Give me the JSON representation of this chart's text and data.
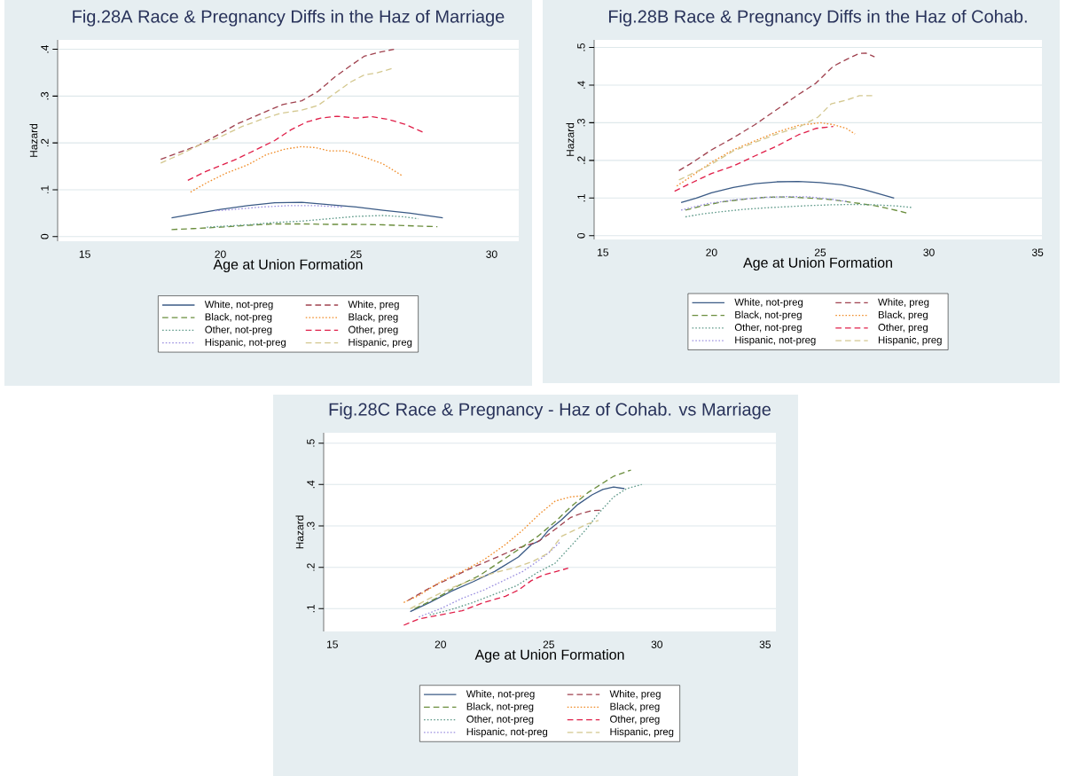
{
  "chart_data": [
    {
      "type": "line",
      "title": "Fig.28A Race & Pregnancy Diffs in the Haz of Marriage",
      "xlabel": "Age at Union Formation",
      "ylabel": "Hazard",
      "xlim": [
        14,
        31
      ],
      "ylim": [
        -0.01,
        0.42
      ],
      "xticks": [
        15,
        20,
        25,
        30
      ],
      "yticks": [
        {
          "value": 0,
          "label": "0"
        },
        {
          "value": 0.1,
          "label": ".1"
        },
        {
          "value": 0.2,
          "label": ".2"
        },
        {
          "value": 0.3,
          "label": ".3"
        },
        {
          "value": 0.4,
          "label": ".4"
        }
      ],
      "grid": "y",
      "legend": "bottom",
      "series": [
        {
          "name": "White, not-preg",
          "color": "#3a5a85",
          "line_style": "solid",
          "x": [
            18.2,
            19,
            20,
            21,
            22,
            23,
            24,
            25,
            26,
            27,
            28.2
          ],
          "values": [
            0.04,
            0.048,
            0.058,
            0.066,
            0.072,
            0.073,
            0.068,
            0.063,
            0.056,
            0.05,
            0.04
          ]
        },
        {
          "name": "White, preg",
          "color": "#a0424f",
          "line_style": "dashed",
          "x": [
            17.8,
            18.5,
            19.2,
            20,
            20.6,
            21.2,
            21.8,
            22.3,
            23,
            23.6,
            24.2,
            24.8,
            25.3,
            25.8,
            26.4
          ],
          "values": [
            0.165,
            0.18,
            0.195,
            0.22,
            0.24,
            0.255,
            0.27,
            0.282,
            0.29,
            0.31,
            0.34,
            0.365,
            0.385,
            0.393,
            0.4
          ]
        },
        {
          "name": "Black, not-preg",
          "color": "#6b8e3e",
          "line_style": "dashed",
          "x": [
            18.2,
            19,
            20,
            21,
            22,
            23,
            24,
            25,
            26,
            27,
            28
          ],
          "values": [
            0.015,
            0.017,
            0.02,
            0.024,
            0.027,
            0.027,
            0.026,
            0.026,
            0.025,
            0.023,
            0.021
          ]
        },
        {
          "name": "Black, preg",
          "color": "#f08c28",
          "line_style": "dotted",
          "x": [
            18.9,
            19.5,
            20.2,
            21,
            21.7,
            22.4,
            23,
            23.5,
            24,
            24.6,
            25.3,
            26,
            26.7
          ],
          "values": [
            0.095,
            0.115,
            0.135,
            0.153,
            0.175,
            0.187,
            0.192,
            0.19,
            0.183,
            0.183,
            0.17,
            0.155,
            0.13
          ]
        },
        {
          "name": "Other, not-preg",
          "color": "#5f9a8a",
          "line_style": "dotted",
          "x": [
            19.5,
            21,
            22,
            23,
            24,
            25,
            26,
            26.8,
            27.3
          ],
          "values": [
            0.02,
            0.025,
            0.03,
            0.033,
            0.038,
            0.043,
            0.045,
            0.042,
            0.038
          ]
        },
        {
          "name": "Other, preg",
          "color": "#e0204a",
          "line_style": "dashed",
          "x": [
            18.8,
            19.5,
            20.5,
            21.3,
            22,
            22.6,
            23.2,
            23.7,
            24.3,
            25,
            25.6,
            26.2,
            26.8,
            27.5
          ],
          "values": [
            0.12,
            0.14,
            0.163,
            0.185,
            0.205,
            0.228,
            0.245,
            0.253,
            0.257,
            0.253,
            0.256,
            0.25,
            0.24,
            0.222
          ]
        },
        {
          "name": "Hispanic, not-preg",
          "color": "#9b8fe0",
          "line_style": "dotted",
          "x": [
            19.8,
            20.5,
            21.5,
            22.5,
            23.5,
            24.5
          ],
          "values": [
            0.055,
            0.058,
            0.063,
            0.066,
            0.066,
            0.063
          ]
        },
        {
          "name": "Hispanic, preg",
          "color": "#d4c890",
          "line_style": "dashed",
          "x": [
            17.8,
            18.5,
            19.2,
            20,
            20.8,
            21.5,
            22.2,
            23,
            23.6,
            24.2,
            24.8,
            25.3,
            25.8,
            26.4
          ],
          "values": [
            0.157,
            0.175,
            0.195,
            0.213,
            0.235,
            0.25,
            0.263,
            0.27,
            0.28,
            0.305,
            0.33,
            0.345,
            0.35,
            0.36
          ]
        }
      ]
    },
    {
      "type": "line",
      "title": "Fig.28B Race & Pregnancy Diffs in the Haz of Cohab.",
      "xlabel": "Age at Union Formation",
      "ylabel": "Hazard",
      "xlim": [
        14.6,
        35.2
      ],
      "ylim": [
        -0.01,
        0.52
      ],
      "xticks": [
        15,
        20,
        25,
        30,
        35
      ],
      "yticks": [
        {
          "value": 0,
          "label": "0"
        },
        {
          "value": 0.1,
          "label": ".1"
        },
        {
          "value": 0.2,
          "label": ".2"
        },
        {
          "value": 0.3,
          "label": ".3"
        },
        {
          "value": 0.4,
          "label": ".4"
        },
        {
          "value": 0.5,
          "label": ".5"
        }
      ],
      "grid": "y",
      "legend": "bottom",
      "series": [
        {
          "name": "White, not-preg",
          "color": "#3a5a85",
          "line_style": "solid",
          "x": [
            18.6,
            19.3,
            20,
            21,
            22,
            23,
            24,
            25,
            26,
            27,
            28.4
          ],
          "values": [
            0.088,
            0.1,
            0.114,
            0.128,
            0.138,
            0.143,
            0.144,
            0.141,
            0.135,
            0.123,
            0.1
          ]
        },
        {
          "name": "White, preg",
          "color": "#a0424f",
          "line_style": "dashed",
          "x": [
            18.5,
            19,
            20,
            21,
            22,
            23,
            24,
            24.8,
            25.6,
            26.2,
            26.8,
            27.1,
            27.5
          ],
          "values": [
            0.173,
            0.19,
            0.228,
            0.26,
            0.295,
            0.335,
            0.375,
            0.405,
            0.45,
            0.468,
            0.484,
            0.485,
            0.475
          ]
        },
        {
          "name": "Black, not-preg",
          "color": "#6b8e3e",
          "line_style": "dashed",
          "x": [
            18.8,
            19.5,
            20.5,
            21.5,
            22.5,
            23.5,
            24.5,
            25.5,
            26.5,
            27.5,
            28.3,
            29
          ],
          "values": [
            0.068,
            0.078,
            0.09,
            0.097,
            0.102,
            0.103,
            0.1,
            0.096,
            0.088,
            0.08,
            0.07,
            0.06
          ]
        },
        {
          "name": "Black, preg",
          "color": "#f08c28",
          "line_style": "dotted",
          "x": [
            18.4,
            19,
            20,
            21,
            22,
            23,
            24,
            25,
            25.6,
            26.2,
            26.6
          ],
          "values": [
            0.132,
            0.155,
            0.195,
            0.228,
            0.252,
            0.275,
            0.293,
            0.3,
            0.295,
            0.285,
            0.27
          ]
        },
        {
          "name": "Other, not-preg",
          "color": "#5f9a8a",
          "line_style": "dotted",
          "x": [
            18.8,
            19.6,
            20.5,
            21.5,
            22.5,
            23.5,
            24.5,
            25.5,
            26.5,
            27.5,
            28.5,
            29.2
          ],
          "values": [
            0.05,
            0.058,
            0.064,
            0.07,
            0.074,
            0.077,
            0.08,
            0.082,
            0.083,
            0.082,
            0.079,
            0.075
          ]
        },
        {
          "name": "Other, preg",
          "color": "#e0204a",
          "line_style": "dashed",
          "x": [
            18.3,
            19,
            20,
            21,
            22,
            23,
            24,
            24.8,
            25.6
          ],
          "values": [
            0.118,
            0.138,
            0.165,
            0.185,
            0.212,
            0.238,
            0.268,
            0.285,
            0.29
          ]
        },
        {
          "name": "Hispanic, not-preg",
          "color": "#9b8fe0",
          "line_style": "dotted",
          "x": [
            18.6,
            19.8,
            21,
            22.5,
            23.5,
            24.5,
            25.5,
            26.3
          ],
          "values": [
            0.068,
            0.085,
            0.095,
            0.102,
            0.104,
            0.103,
            0.097,
            0.09
          ]
        },
        {
          "name": "Hispanic, preg",
          "color": "#d4c890",
          "line_style": "dashed",
          "x": [
            18.5,
            19.3,
            20,
            21,
            22,
            23,
            24,
            24.9,
            25.5,
            26.2,
            26.8,
            27.5
          ],
          "values": [
            0.148,
            0.17,
            0.19,
            0.225,
            0.248,
            0.27,
            0.288,
            0.315,
            0.35,
            0.36,
            0.372,
            0.372
          ]
        }
      ]
    },
    {
      "type": "line",
      "title": "Fig.28C Race & Pregnancy - Haz of Cohab. vs Marriage",
      "xlabel": "Age at Union Formation",
      "ylabel": "Hazard",
      "xlim": [
        14.6,
        35.5
      ],
      "ylim": [
        0.045,
        0.525
      ],
      "xticks": [
        15,
        20,
        25,
        30,
        35
      ],
      "yticks": [
        {
          "value": 0.1,
          "label": ".1"
        },
        {
          "value": 0.2,
          "label": ".2"
        },
        {
          "value": 0.3,
          "label": ".3"
        },
        {
          "value": 0.4,
          "label": ".4"
        },
        {
          "value": 0.5,
          "label": ".5"
        }
      ],
      "grid": "y",
      "legend": "bottom",
      "series": [
        {
          "name": "White, not-preg",
          "color": "#3a5a85",
          "line_style": "solid",
          "x": [
            18.6,
            19.5,
            20.5,
            21.5,
            22.5,
            23.6,
            24.2,
            24.6,
            25,
            25.6,
            26.3,
            27,
            27.5,
            28,
            28.5
          ],
          "values": [
            0.093,
            0.115,
            0.142,
            0.165,
            0.19,
            0.225,
            0.255,
            0.265,
            0.29,
            0.315,
            0.35,
            0.375,
            0.388,
            0.394,
            0.39
          ]
        },
        {
          "name": "White, preg",
          "color": "#a0424f",
          "line_style": "dashed",
          "x": [
            18.5,
            19.5,
            20.5,
            21.5,
            22.5,
            23.5,
            24.5,
            25,
            25.5,
            26,
            26.5,
            27,
            27.5
          ],
          "values": [
            0.12,
            0.15,
            0.175,
            0.2,
            0.222,
            0.245,
            0.262,
            0.28,
            0.3,
            0.32,
            0.33,
            0.337,
            0.338
          ]
        },
        {
          "name": "Black, not-preg",
          "color": "#6b8e3e",
          "line_style": "dashed",
          "x": [
            18.8,
            19.8,
            20.8,
            21.8,
            22.8,
            23.8,
            24.5,
            25.3,
            26,
            26.8,
            27.4,
            28,
            28.8
          ],
          "values": [
            0.1,
            0.125,
            0.155,
            0.18,
            0.215,
            0.25,
            0.275,
            0.31,
            0.345,
            0.38,
            0.4,
            0.42,
            0.435
          ]
        },
        {
          "name": "Black, preg",
          "color": "#f08c28",
          "line_style": "dotted",
          "x": [
            18.3,
            19,
            20,
            21,
            22,
            23,
            23.8,
            24.6,
            25.3,
            26,
            26.6
          ],
          "values": [
            0.115,
            0.132,
            0.165,
            0.19,
            0.218,
            0.255,
            0.29,
            0.33,
            0.36,
            0.37,
            0.373
          ]
        },
        {
          "name": "Other, not-preg",
          "color": "#5f9a8a",
          "line_style": "dotted",
          "x": [
            19.5,
            20.5,
            21.5,
            22.5,
            23.5,
            24.5,
            25.3,
            26,
            26.7,
            27.3,
            28,
            28.6,
            29.3
          ],
          "values": [
            0.085,
            0.098,
            0.115,
            0.135,
            0.155,
            0.188,
            0.21,
            0.25,
            0.29,
            0.33,
            0.37,
            0.39,
            0.4
          ]
        },
        {
          "name": "Other, preg",
          "color": "#e0204a",
          "line_style": "dashed",
          "x": [
            18.3,
            19,
            20,
            21,
            22,
            23,
            23.6,
            24.2,
            24.8,
            25.5,
            25.9
          ],
          "values": [
            0.06,
            0.075,
            0.085,
            0.095,
            0.115,
            0.13,
            0.145,
            0.168,
            0.182,
            0.192,
            0.198
          ]
        },
        {
          "name": "Hispanic, not-preg",
          "color": "#9b8fe0",
          "line_style": "dotted",
          "x": [
            19,
            20,
            21,
            22,
            23,
            23.8,
            24.5,
            25,
            25.5
          ],
          "values": [
            0.08,
            0.1,
            0.125,
            0.145,
            0.17,
            0.19,
            0.215,
            0.235,
            0.26
          ]
        },
        {
          "name": "Hispanic, preg",
          "color": "#d4c890",
          "line_style": "dashed",
          "x": [
            18.6,
            19.5,
            20.5,
            21.5,
            22.5,
            23.5,
            24.3,
            25,
            25.6,
            26.2,
            26.8,
            27.3
          ],
          "values": [
            0.1,
            0.125,
            0.15,
            0.17,
            0.187,
            0.2,
            0.215,
            0.235,
            0.275,
            0.29,
            0.305,
            0.313
          ]
        }
      ]
    }
  ]
}
